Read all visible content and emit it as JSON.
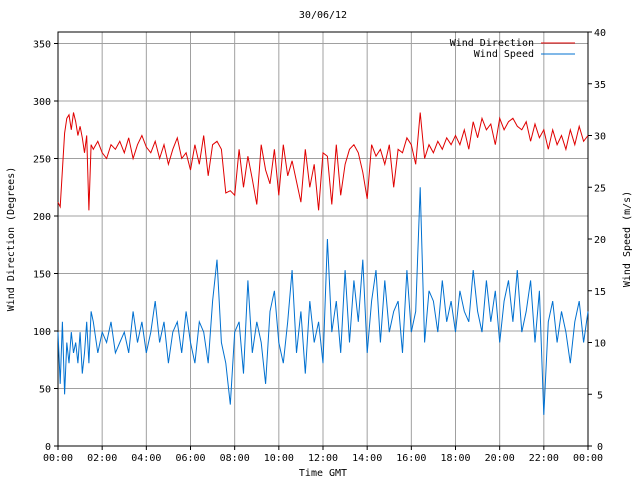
{
  "chart_data": {
    "type": "line",
    "title": "30/06/12",
    "xlabel": "Time GMT",
    "ylabel_left": "Wind Direction (Degrees)",
    "ylabel_right": "Wind Speed (m/s)",
    "x_ticks": [
      "00:00",
      "02:00",
      "04:00",
      "06:00",
      "08:00",
      "10:00",
      "12:00",
      "14:00",
      "16:00",
      "18:00",
      "20:00",
      "22:00",
      "00:00"
    ],
    "y_left_ticks": [
      0,
      50,
      100,
      150,
      200,
      250,
      300,
      350
    ],
    "y_right_ticks": [
      0,
      5,
      10,
      15,
      20,
      25,
      30,
      35,
      40
    ],
    "y_left_range": [
      0,
      360
    ],
    "y_right_range": [
      0,
      40
    ],
    "x_range_hours": [
      0,
      24
    ],
    "grid": true,
    "legend_position": "top-right",
    "series": [
      {
        "name": "Wind Direction",
        "axis": "left",
        "color": "#e00000",
        "x_hours": [
          0.0,
          0.1,
          0.2,
          0.3,
          0.4,
          0.5,
          0.6,
          0.7,
          0.8,
          0.9,
          1.0,
          1.1,
          1.2,
          1.3,
          1.4,
          1.5,
          1.6,
          1.8,
          2.0,
          2.2,
          2.4,
          2.6,
          2.8,
          3.0,
          3.2,
          3.4,
          3.6,
          3.8,
          4.0,
          4.2,
          4.4,
          4.6,
          4.8,
          5.0,
          5.2,
          5.4,
          5.6,
          5.8,
          6.0,
          6.2,
          6.4,
          6.6,
          6.8,
          7.0,
          7.2,
          7.4,
          7.6,
          7.8,
          8.0,
          8.2,
          8.4,
          8.6,
          8.8,
          9.0,
          9.2,
          9.4,
          9.6,
          9.8,
          10.0,
          10.2,
          10.4,
          10.6,
          10.8,
          11.0,
          11.2,
          11.4,
          11.6,
          11.8,
          12.0,
          12.2,
          12.4,
          12.6,
          12.8,
          13.0,
          13.2,
          13.4,
          13.6,
          13.8,
          14.0,
          14.2,
          14.4,
          14.6,
          14.8,
          15.0,
          15.2,
          15.4,
          15.6,
          15.8,
          16.0,
          16.2,
          16.4,
          16.6,
          16.8,
          17.0,
          17.2,
          17.4,
          17.6,
          17.8,
          18.0,
          18.2,
          18.4,
          18.6,
          18.8,
          19.0,
          19.2,
          19.4,
          19.6,
          19.8,
          20.0,
          20.2,
          20.4,
          20.6,
          20.8,
          21.0,
          21.2,
          21.4,
          21.6,
          21.8,
          22.0,
          22.2,
          22.4,
          22.6,
          22.8,
          23.0,
          23.2,
          23.4,
          23.6,
          23.8,
          24.0
        ],
        "values": [
          212,
          208,
          240,
          272,
          285,
          288,
          275,
          290,
          282,
          270,
          278,
          268,
          255,
          270,
          205,
          262,
          258,
          265,
          255,
          250,
          262,
          258,
          265,
          255,
          268,
          250,
          262,
          270,
          260,
          255,
          265,
          250,
          262,
          245,
          258,
          268,
          250,
          255,
          240,
          262,
          245,
          270,
          235,
          262,
          265,
          258,
          220,
          222,
          218,
          258,
          225,
          252,
          232,
          210,
          262,
          240,
          228,
          258,
          218,
          262,
          235,
          248,
          230,
          212,
          258,
          225,
          245,
          205,
          255,
          252,
          210,
          262,
          218,
          245,
          258,
          262,
          255,
          238,
          215,
          262,
          252,
          258,
          245,
          262,
          225,
          258,
          255,
          268,
          262,
          245,
          290,
          250,
          262,
          255,
          265,
          258,
          268,
          262,
          270,
          262,
          275,
          258,
          282,
          268,
          285,
          275,
          280,
          262,
          285,
          275,
          282,
          285,
          278,
          275,
          282,
          265,
          280,
          268,
          275,
          258,
          275,
          262,
          270,
          258,
          275,
          262,
          278,
          265,
          270
        ]
      },
      {
        "name": "Wind Speed",
        "axis": "right",
        "color": "#0070d0",
        "x_hours": [
          0.0,
          0.1,
          0.2,
          0.3,
          0.4,
          0.5,
          0.6,
          0.7,
          0.8,
          0.9,
          1.0,
          1.1,
          1.2,
          1.3,
          1.4,
          1.5,
          1.6,
          1.8,
          2.0,
          2.2,
          2.4,
          2.6,
          2.8,
          3.0,
          3.2,
          3.4,
          3.6,
          3.8,
          4.0,
          4.2,
          4.4,
          4.6,
          4.8,
          5.0,
          5.2,
          5.4,
          5.6,
          5.8,
          6.0,
          6.2,
          6.4,
          6.6,
          6.8,
          7.0,
          7.2,
          7.4,
          7.6,
          7.8,
          8.0,
          8.2,
          8.4,
          8.6,
          8.8,
          9.0,
          9.2,
          9.4,
          9.6,
          9.8,
          10.0,
          10.2,
          10.4,
          10.6,
          10.8,
          11.0,
          11.2,
          11.4,
          11.6,
          11.8,
          12.0,
          12.2,
          12.4,
          12.6,
          12.8,
          13.0,
          13.2,
          13.4,
          13.6,
          13.8,
          14.0,
          14.2,
          14.4,
          14.6,
          14.8,
          15.0,
          15.2,
          15.4,
          15.6,
          15.8,
          16.0,
          16.2,
          16.4,
          16.6,
          16.8,
          17.0,
          17.2,
          17.4,
          17.6,
          17.8,
          18.0,
          18.2,
          18.4,
          18.6,
          18.8,
          19.0,
          19.2,
          19.4,
          19.6,
          19.8,
          20.0,
          20.2,
          20.4,
          20.6,
          20.8,
          21.0,
          21.2,
          21.4,
          21.6,
          21.8,
          22.0,
          22.2,
          22.4,
          22.6,
          22.8,
          23.0,
          23.2,
          23.4,
          23.6,
          23.8,
          24.0
        ],
        "values": [
          11,
          6,
          12,
          5,
          10,
          8,
          11,
          9,
          10,
          8,
          11,
          7,
          9,
          12,
          8,
          13,
          12,
          9,
          11,
          10,
          12,
          9,
          10,
          11,
          9,
          13,
          10,
          12,
          9,
          11,
          14,
          10,
          12,
          8,
          11,
          12,
          9,
          13,
          10,
          8,
          12,
          11,
          8,
          14,
          18,
          10,
          8,
          4,
          11,
          12,
          7,
          16,
          9,
          12,
          10,
          6,
          13,
          15,
          10,
          8,
          12,
          17,
          9,
          13,
          7,
          14,
          10,
          12,
          8,
          20,
          11,
          14,
          9,
          17,
          10,
          16,
          12,
          18,
          9,
          14,
          17,
          10,
          16,
          11,
          13,
          14,
          9,
          17,
          11,
          13,
          25,
          10,
          15,
          14,
          11,
          16,
          12,
          14,
          11,
          15,
          13,
          12,
          17,
          13,
          11,
          16,
          12,
          15,
          10,
          14,
          16,
          12,
          17,
          11,
          13,
          16,
          10,
          15,
          3,
          12,
          14,
          10,
          13,
          11,
          8,
          12,
          14,
          10,
          13
        ]
      }
    ]
  }
}
